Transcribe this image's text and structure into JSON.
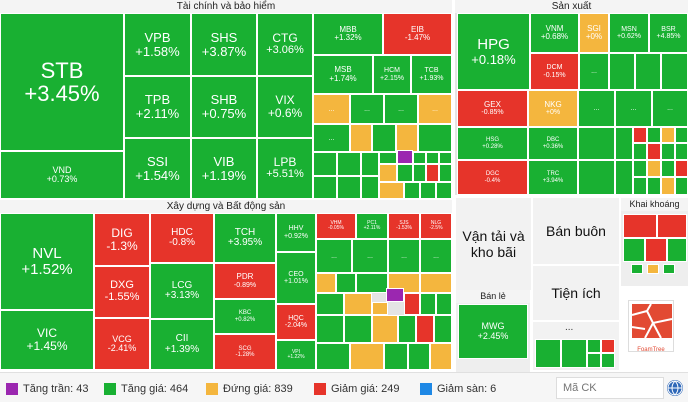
{
  "sectors": {
    "finance": "Tài chính và bảo hiểm",
    "production": "Sản xuất",
    "construction": "Xây dựng và Bất động sản",
    "transport": "Vận tải và kho bãi",
    "wholesale": "Bán buôn",
    "mining": "Khai khoáng",
    "retail": "Bán lẻ",
    "utilities": "Tiện ích"
  },
  "tiles": {
    "STB": {
      "t": "STB",
      "p": "+3.45%"
    },
    "VND": {
      "t": "VND",
      "p": "+0.73%"
    },
    "VPB": {
      "t": "VPB",
      "p": "+1.58%"
    },
    "TPB": {
      "t": "TPB",
      "p": "+2.11%"
    },
    "SSI": {
      "t": "SSI",
      "p": "+1.54%"
    },
    "SHS": {
      "t": "SHS",
      "p": "+3.87%"
    },
    "SHB": {
      "t": "SHB",
      "p": "+0.75%"
    },
    "VIB": {
      "t": "VIB",
      "p": "+1.19%"
    },
    "CTG": {
      "t": "CTG",
      "p": "+3.06%"
    },
    "VIX": {
      "t": "VIX",
      "p": "+0.6%"
    },
    "LPB": {
      "t": "LPB",
      "p": "+5.51%"
    },
    "MBB": {
      "t": "MBB",
      "p": "+1.32%"
    },
    "EIB": {
      "t": "EIB",
      "p": "-1.47%"
    },
    "MSB": {
      "t": "MSB",
      "p": "+1.74%"
    },
    "HCM": {
      "t": "HCM",
      "p": "+2.15%"
    },
    "TCB": {
      "t": "TCB",
      "p": "+1.93%"
    },
    "HPG": {
      "t": "HPG",
      "p": "+0.18%"
    },
    "VNM": {
      "t": "VNM",
      "p": "+0.68%"
    },
    "SGI": {
      "t": "SGI",
      "p": "+0%"
    },
    "MSN": {
      "t": "MSN",
      "p": "+0.62%"
    },
    "BSR": {
      "t": "BSR",
      "p": "+4.85%"
    },
    "DCM": {
      "t": "DCM",
      "p": "-0.15%"
    },
    "GEX": {
      "t": "GEX",
      "p": "-0.85%"
    },
    "NKG": {
      "t": "NKG",
      "p": "+0%"
    },
    "HSG": {
      "t": "HSG",
      "p": "+0.28%"
    },
    "DBC": {
      "t": "DBC",
      "p": "+0.36%"
    },
    "DGC": {
      "t": "DGC",
      "p": "-0.4%"
    },
    "TRC": {
      "t": "TRC",
      "p": "+3.94%"
    },
    "NVL": {
      "t": "NVL",
      "p": "+1.52%"
    },
    "VIC": {
      "t": "VIC",
      "p": "+1.45%"
    },
    "DIG": {
      "t": "DIG",
      "p": "-1.3%"
    },
    "DXG": {
      "t": "DXG",
      "p": "-1.55%"
    },
    "VCG": {
      "t": "VCG",
      "p": "-2.41%"
    },
    "HDC": {
      "t": "HDC",
      "p": "-0.8%"
    },
    "LCG": {
      "t": "LCG",
      "p": "+3.13%"
    },
    "CII": {
      "t": "CII",
      "p": "+1.39%"
    },
    "TCH": {
      "t": "TCH",
      "p": "+3.95%"
    },
    "PDR": {
      "t": "PDR",
      "p": "-0.89%"
    },
    "KBC": {
      "t": "KBC",
      "p": "+0.82%"
    },
    "SCG": {
      "t": "SCG",
      "p": "-1.28%"
    },
    "HHV": {
      "t": "HHV",
      "p": "+0.92%"
    },
    "CEO": {
      "t": "CEO",
      "p": "+1.01%"
    },
    "HQC": {
      "t": "HQC",
      "p": "-2.04%"
    },
    "VHM": {
      "t": "VHM",
      "p": "-0.05%"
    },
    "PC1": {
      "t": "PC1",
      "p": "+2.11%"
    },
    "SJS": {
      "t": "SJS",
      "p": "-1.53%"
    },
    "NLG": {
      "t": "NLG",
      "p": "-2.5%"
    },
    "VPI": {
      "t": "VPI",
      "p": "+1.22%"
    },
    "MWG": {
      "t": "MWG",
      "p": "+2.45%"
    }
  },
  "ellipsis": "...",
  "legend": [
    {
      "label": "Tăng trần: 43",
      "color": "#9b27b0"
    },
    {
      "label": "Tăng giá: 464",
      "color": "#19b032"
    },
    {
      "label": "Đứng giá: 839",
      "color": "#f4b63e"
    },
    {
      "label": "Giảm giá: 249",
      "color": "#e6342a"
    },
    {
      "label": "Giảm sàn: 6",
      "color": "#1e88e5"
    }
  ],
  "search_placeholder": "Mã CK",
  "logo_text": "FoamTree"
}
